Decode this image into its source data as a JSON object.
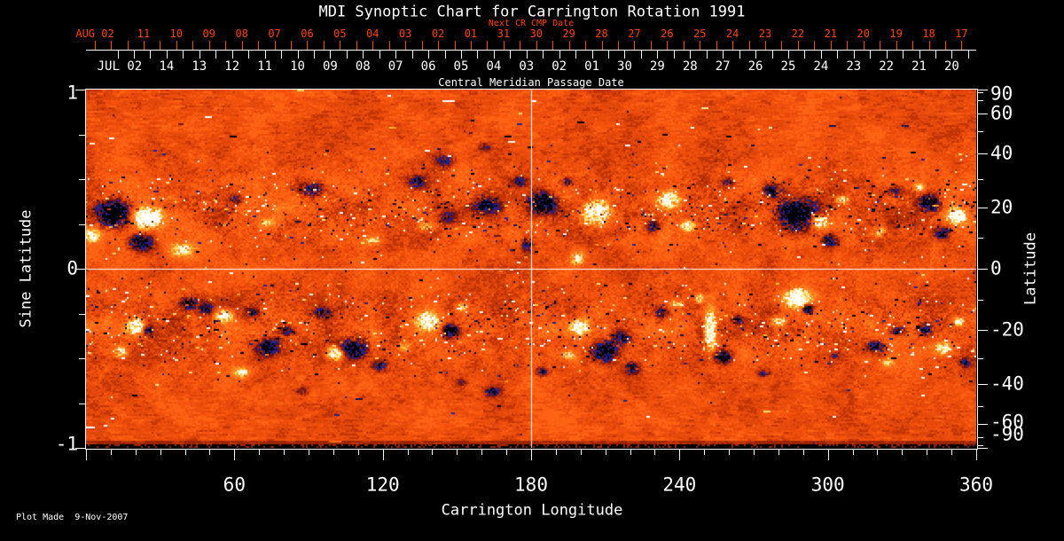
{
  "title": "MDI Synoptic Chart for Carrington Rotation 1991",
  "footer": "Plot Made  9-Nov-2007",
  "colors": {
    "accent": "#ff4400",
    "text": "#ffffff",
    "background": "#000000",
    "grid_line": "#ffffff"
  },
  "top_axis": {
    "next_cr_label": "Next CR CMP Date",
    "axis_title": "Central Meridian Passage Date",
    "red": {
      "month_label": "AUG 02",
      "month_label_lon": 3.6,
      "start_lon": 23.3,
      "lon_per_day": 13.23,
      "days": [
        "11",
        "10",
        "09",
        "08",
        "07",
        "06",
        "05",
        "04",
        "03",
        "02",
        "01",
        "31",
        "30",
        "29",
        "28",
        "27",
        "26",
        "25",
        "24",
        "23",
        "22",
        "21",
        "20",
        "19",
        "18",
        "17"
      ]
    },
    "white": {
      "month_label": "JUL 02",
      "month_label_lon": 13.6,
      "start_lon": 32.6,
      "lon_per_day": 13.23,
      "days": [
        "14",
        "13",
        "12",
        "11",
        "10",
        "09",
        "08",
        "07",
        "06",
        "05",
        "04",
        "03",
        "02",
        "01",
        "30",
        "29",
        "28",
        "27",
        "26",
        "25",
        "24",
        "23",
        "22",
        "21",
        "20"
      ]
    }
  },
  "x_axis": {
    "title": "Carrington Longitude",
    "major_ticks": [
      0,
      60,
      120,
      180,
      240,
      300,
      360
    ],
    "major_labels": [
      "60",
      "120",
      "180",
      "240",
      "300",
      "360"
    ],
    "minor_step_deg": 10,
    "range": [
      0,
      360
    ]
  },
  "left_axis": {
    "title": "Sine Latitude",
    "tick_labels": [
      "1",
      "0",
      "-1"
    ],
    "tick_values": [
      1,
      0,
      -1
    ],
    "minor_values": [
      0.75,
      0.5,
      0.25,
      -0.25,
      -0.5,
      -0.75
    ],
    "range": [
      -1,
      1
    ]
  },
  "right_axis": {
    "title": "Latitude",
    "tick_labels": [
      "90",
      "60",
      "40",
      "20",
      "0",
      "-20",
      "-40",
      "-60",
      "-90"
    ],
    "tick_values": [
      90,
      60,
      40,
      20,
      0,
      -20,
      -40,
      -60,
      -90
    ],
    "minor_values": [
      80,
      70,
      50,
      30,
      10,
      -10,
      -30,
      -50,
      -70,
      -80
    ]
  },
  "chart_data": {
    "type": "heatmap",
    "title": "MDI Synoptic Chart for Carrington Rotation 1991",
    "description": "Full-rotation synoptic magnetogram: line-of-sight magnetic field vs Carrington longitude and sine latitude. Quiet sun renders as mottled orange-red noise; negative polarity fields render dark blue to black; positive polarity fields render yellow to white.",
    "x_range_deg": [
      0,
      360
    ],
    "y_range_sine_latitude": [
      -1,
      1
    ],
    "grid_lines": {
      "longitude_deg": [
        180
      ],
      "sine_latitude": [
        0
      ]
    },
    "activity_belts": {
      "center_sine_latitude": 0.33,
      "width_sine": 0.18
    },
    "colormap": {
      "strong_negative": "#000000",
      "negative": "#2222a0",
      "weak_negative": "#9c2402",
      "quiet": "#ef5410",
      "weak_positive": "#ffc43e",
      "positive": "#fff6cf",
      "strong_positive": "#ffffff"
    },
    "active_regions": {
      "note": "Each region: [longitude_deg, sine_latitude, radius_lon_deg, radius_sine, strength]",
      "negative": [
        [
          11.1,
          0.31,
          6.1,
          0.064,
          1.8
        ],
        [
          21.9,
          0.15,
          4.3,
          0.045,
          1.3
        ],
        [
          91.4,
          0.45,
          5.0,
          0.045,
          0.75
        ],
        [
          133.8,
          0.49,
          3.6,
          0.035,
          0.8
        ],
        [
          146.3,
          0.29,
          3.2,
          0.035,
          0.8
        ],
        [
          161.7,
          0.36,
          5.0,
          0.05,
          1.0
        ],
        [
          175.0,
          0.49,
          3.2,
          0.03,
          0.7
        ],
        [
          184.0,
          0.37,
          5.0,
          0.059,
          1.6
        ],
        [
          178.2,
          0.14,
          2.5,
          0.045,
          0.8
        ],
        [
          194.7,
          0.49,
          2.5,
          0.025,
          0.8
        ],
        [
          228.8,
          0.24,
          2.5,
          0.03,
          0.8
        ],
        [
          287.9,
          0.31,
          7.9,
          0.079,
          1.9
        ],
        [
          277.2,
          0.44,
          4.3,
          0.04,
          1.1
        ],
        [
          300.5,
          0.16,
          3.2,
          0.035,
          1.0
        ],
        [
          341.0,
          0.37,
          3.9,
          0.045,
          1.4
        ],
        [
          346.0,
          0.2,
          2.9,
          0.03,
          1.0
        ],
        [
          60.2,
          0.39,
          2.9,
          0.025,
          0.55
        ],
        [
          259.3,
          0.49,
          2.9,
          0.03,
          0.7
        ],
        [
          326.7,
          0.44,
          2.5,
          0.025,
          0.6
        ],
        [
          144.5,
          0.61,
          4.3,
          0.04,
          0.6
        ],
        [
          160.6,
          0.68,
          2.9,
          0.025,
          0.5
        ],
        [
          24.7,
          -0.34,
          1.8,
          0.025,
          1.0
        ],
        [
          41.2,
          -0.19,
          3.6,
          0.035,
          1.2
        ],
        [
          48.4,
          -0.22,
          2.9,
          0.03,
          1.0
        ],
        [
          67.4,
          -0.24,
          2.5,
          0.025,
          0.8
        ],
        [
          73.5,
          -0.43,
          4.3,
          0.045,
          1.3
        ],
        [
          80.7,
          -0.34,
          2.9,
          0.03,
          0.9
        ],
        [
          107.9,
          -0.44,
          5.0,
          0.05,
          1.5
        ],
        [
          95.0,
          -0.24,
          3.2,
          0.03,
          0.8
        ],
        [
          118.6,
          -0.54,
          2.9,
          0.03,
          0.8
        ],
        [
          147.0,
          -0.34,
          3.2,
          0.035,
          1.3
        ],
        [
          164.2,
          -0.68,
          3.2,
          0.025,
          0.9
        ],
        [
          184.0,
          -0.57,
          2.5,
          0.025,
          0.7
        ],
        [
          209.7,
          -0.46,
          5.0,
          0.05,
          1.4
        ],
        [
          220.5,
          -0.55,
          3.2,
          0.035,
          1.0
        ],
        [
          216.2,
          -0.38,
          4.3,
          0.04,
          0.9
        ],
        [
          232.4,
          -0.24,
          2.9,
          0.03,
          0.9
        ],
        [
          257.5,
          -0.49,
          3.2,
          0.035,
          1.4
        ],
        [
          262.9,
          -0.28,
          2.2,
          0.025,
          0.8
        ],
        [
          291.5,
          -0.22,
          2.2,
          0.025,
          1.6
        ],
        [
          319.5,
          -0.43,
          3.6,
          0.035,
          0.9
        ],
        [
          328.1,
          -0.34,
          2.5,
          0.025,
          0.8
        ],
        [
          338.8,
          -0.34,
          2.9,
          0.03,
          0.9
        ],
        [
          355.4,
          -0.52,
          2.2,
          0.025,
          0.8
        ],
        [
          87.1,
          -0.68,
          2.2,
          0.02,
          0.6
        ],
        [
          151.6,
          -0.63,
          2.2,
          0.02,
          0.5
        ],
        [
          273.6,
          -0.58,
          2.5,
          0.02,
          0.6
        ],
        [
          302.3,
          -0.48,
          2.2,
          0.02,
          0.5
        ]
      ],
      "positive": [
        [
          24.4,
          0.29,
          5.7,
          0.054,
          1.9
        ],
        [
          2.2,
          0.19,
          2.9,
          0.035,
          1.2
        ],
        [
          38.7,
          0.11,
          5.0,
          0.04,
          0.8
        ],
        [
          137.3,
          0.24,
          2.9,
          0.03,
          0.7
        ],
        [
          206.2,
          0.32,
          5.7,
          0.069,
          1.4
        ],
        [
          198.3,
          0.06,
          2.9,
          0.04,
          0.8
        ],
        [
          234.9,
          0.39,
          4.3,
          0.045,
          1.3
        ],
        [
          243.1,
          0.24,
          2.9,
          0.03,
          0.9
        ],
        [
          295.8,
          0.27,
          3.6,
          0.04,
          1.5
        ],
        [
          305.9,
          0.39,
          2.5,
          0.025,
          0.9
        ],
        [
          351.8,
          0.3,
          3.9,
          0.045,
          1.7
        ],
        [
          336.4,
          0.46,
          2.2,
          0.025,
          0.8
        ],
        [
          72.8,
          0.26,
          3.6,
          0.03,
          0.6
        ],
        [
          115.8,
          0.16,
          2.9,
          0.025,
          0.6
        ],
        [
          320.2,
          0.21,
          3.2,
          0.03,
          0.7
        ],
        [
          19.7,
          -0.32,
          3.6,
          0.045,
          1.2
        ],
        [
          13.6,
          -0.46,
          2.5,
          0.03,
          0.8
        ],
        [
          55.6,
          -0.26,
          3.6,
          0.035,
          1.1
        ],
        [
          62.7,
          -0.57,
          3.2,
          0.03,
          0.9
        ],
        [
          100.7,
          -0.47,
          3.2,
          0.035,
          1.3
        ],
        [
          138.0,
          -0.29,
          4.3,
          0.045,
          1.6
        ],
        [
          151.6,
          -0.21,
          2.5,
          0.025,
          0.8
        ],
        [
          128.3,
          -0.43,
          2.5,
          0.025,
          0.7
        ],
        [
          199.0,
          -0.32,
          3.9,
          0.04,
          1.3
        ],
        [
          194.7,
          -0.48,
          2.5,
          0.025,
          0.8
        ],
        [
          238.5,
          -0.19,
          2.2,
          0.02,
          0.7
        ],
        [
          252.1,
          -0.34,
          2.2,
          0.109,
          1.5
        ],
        [
          247.8,
          -0.16,
          1.8,
          0.025,
          0.9
        ],
        [
          287.2,
          -0.16,
          5.0,
          0.05,
          1.6
        ],
        [
          280.0,
          -0.29,
          2.9,
          0.03,
          0.9
        ],
        [
          323.8,
          -0.52,
          2.2,
          0.02,
          0.7
        ],
        [
          346.0,
          -0.44,
          3.2,
          0.035,
          1.1
        ],
        [
          352.5,
          -0.29,
          2.5,
          0.025,
          0.9
        ]
      ]
    }
  }
}
